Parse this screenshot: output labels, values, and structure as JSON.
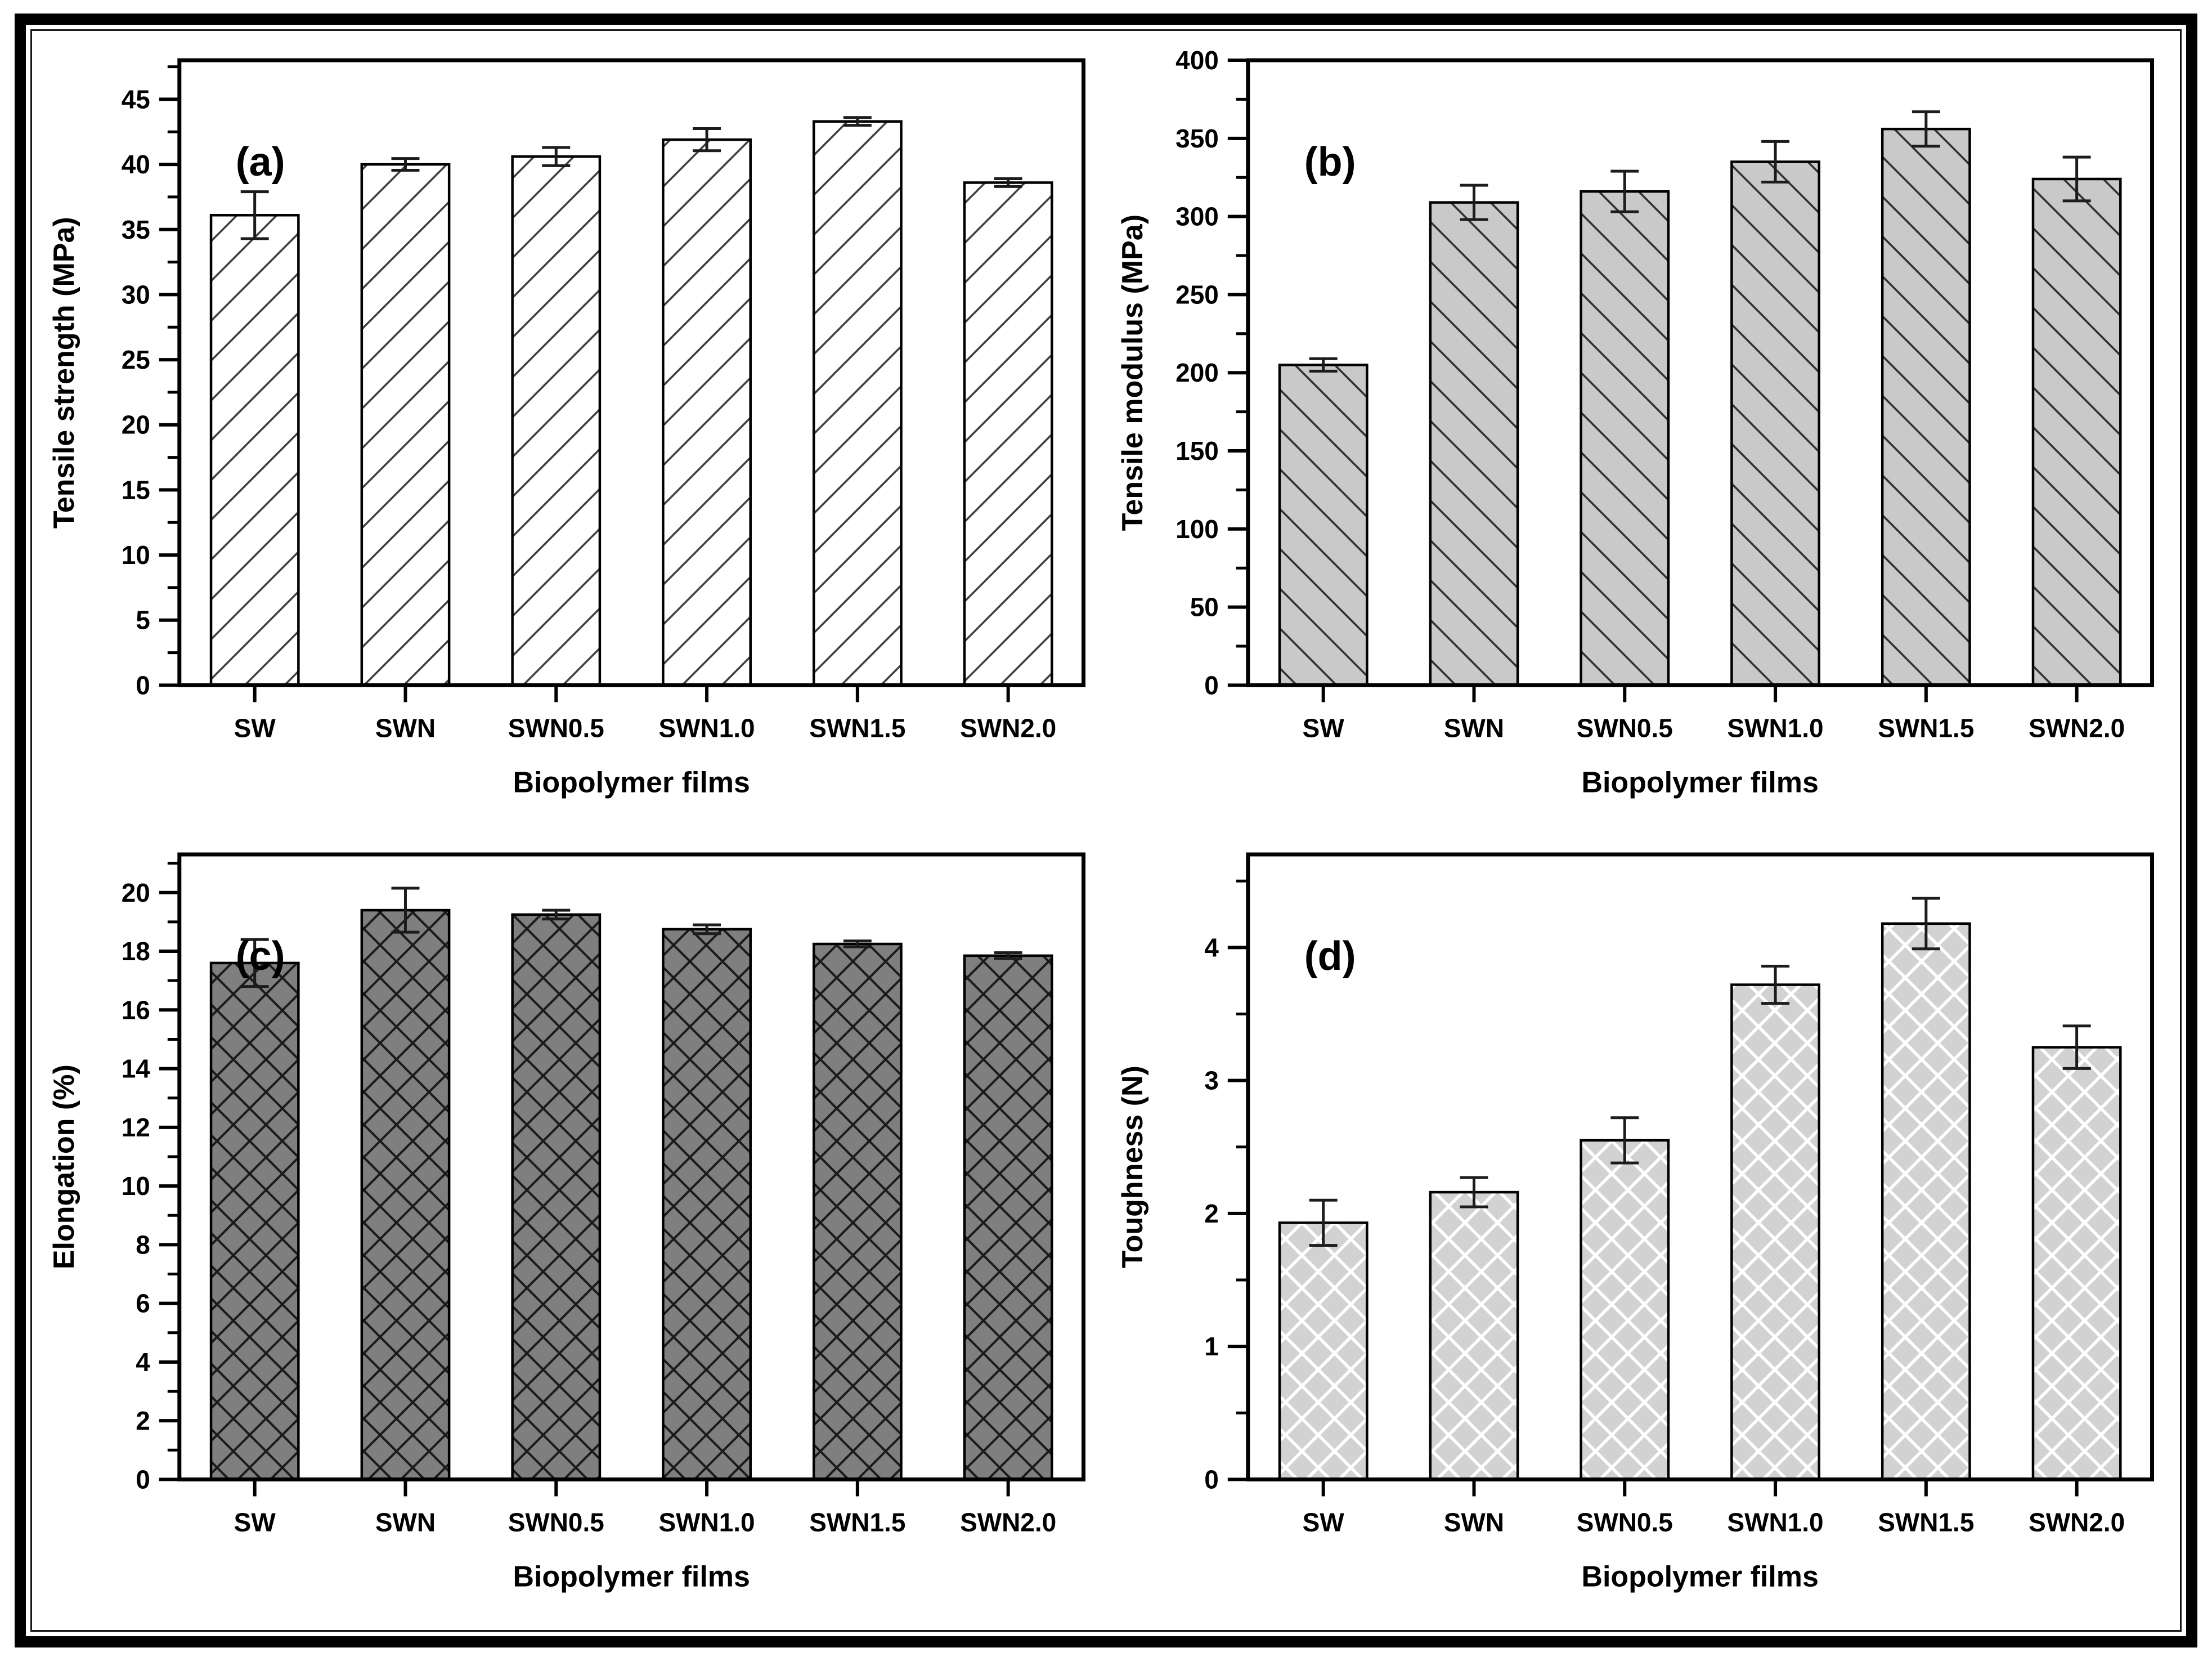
{
  "figure": {
    "background": "#ffffff",
    "border_color": "#000000",
    "axis_color": "#000000",
    "error_bar_color": "#1c1c1c"
  },
  "chart_data": [
    {
      "type": "bar",
      "panel_label": "(a)",
      "title": "",
      "ylabel": "Tensile strength (MPa)",
      "xlabel": "Biopolymer films",
      "categories": [
        "SW",
        "SWN",
        "SWN0.5",
        "SWN1.0",
        "SWN1.5",
        "SWN2.0"
      ],
      "values": [
        36.1,
        40.0,
        40.6,
        41.9,
        43.3,
        38.6
      ],
      "errors": [
        1.8,
        0.45,
        0.7,
        0.85,
        0.3,
        0.3
      ],
      "ylim": [
        0,
        48
      ],
      "ytick_major": 5,
      "ytick_minor": 2.5,
      "ytick_labels": [
        "0",
        "5",
        "10",
        "15",
        "20",
        "25",
        "30",
        "35",
        "40",
        "45"
      ],
      "grid": false,
      "legend": "none",
      "bar_fill": "#ffffff",
      "hatch": "diag-up",
      "hatch_color": "#3c3c3c"
    },
    {
      "type": "bar",
      "panel_label": "(b)",
      "title": "",
      "ylabel": "Tensile modulus (MPa)",
      "xlabel": "Biopolymer films",
      "categories": [
        "SW",
        "SWN",
        "SWN0.5",
        "SWN1.0",
        "SWN1.5",
        "SWN2.0"
      ],
      "values": [
        205,
        309,
        316,
        335,
        356,
        324
      ],
      "errors": [
        4,
        11,
        13,
        13,
        11,
        14
      ],
      "ylim": [
        0,
        400
      ],
      "ytick_major": 50,
      "ytick_minor": 25,
      "ytick_labels": [
        "0",
        "50",
        "100",
        "150",
        "200",
        "250",
        "300",
        "350",
        "400"
      ],
      "grid": false,
      "legend": "none",
      "bar_fill": "#c9c9c9",
      "hatch": "diag-down",
      "hatch_color": "#2e2e2e"
    },
    {
      "type": "bar",
      "panel_label": "(c)",
      "title": "",
      "ylabel": "Elongation (%)",
      "xlabel": "Biopolymer films",
      "categories": [
        "SW",
        "SWN",
        "SWN0.5",
        "SWN1.0",
        "SWN1.5",
        "SWN2.0"
      ],
      "values": [
        17.6,
        19.4,
        19.25,
        18.75,
        18.25,
        17.85
      ],
      "errors": [
        0.8,
        0.75,
        0.15,
        0.15,
        0.1,
        0.1
      ],
      "ylim": [
        0,
        21.3
      ],
      "ytick_major": 2,
      "ytick_minor": 1,
      "ytick_labels": [
        "0",
        "2",
        "4",
        "6",
        "8",
        "10",
        "12",
        "14",
        "16",
        "18",
        "20"
      ],
      "grid": false,
      "legend": "none",
      "bar_fill": "#7f7f7f",
      "hatch": "cross",
      "hatch_color": "#1a1a1a"
    },
    {
      "type": "bar",
      "panel_label": "(d)",
      "title": "",
      "ylabel": "Toughness (N)",
      "xlabel": "Biopolymer films",
      "categories": [
        "SW",
        "SWN",
        "SWN0.5",
        "SWN1.0",
        "SWN1.5",
        "SWN2.0"
      ],
      "values": [
        1.93,
        2.16,
        2.55,
        3.72,
        4.18,
        3.25
      ],
      "errors": [
        0.17,
        0.11,
        0.17,
        0.14,
        0.19,
        0.16
      ],
      "ylim": [
        0,
        4.7
      ],
      "ytick_major": 1,
      "ytick_minor": 0.5,
      "ytick_labels": [
        "0",
        "1",
        "2",
        "3",
        "4"
      ],
      "grid": false,
      "legend": "none",
      "bar_fill": "#d2d2d2",
      "hatch": "cross",
      "hatch_color": "#ffffff"
    }
  ]
}
